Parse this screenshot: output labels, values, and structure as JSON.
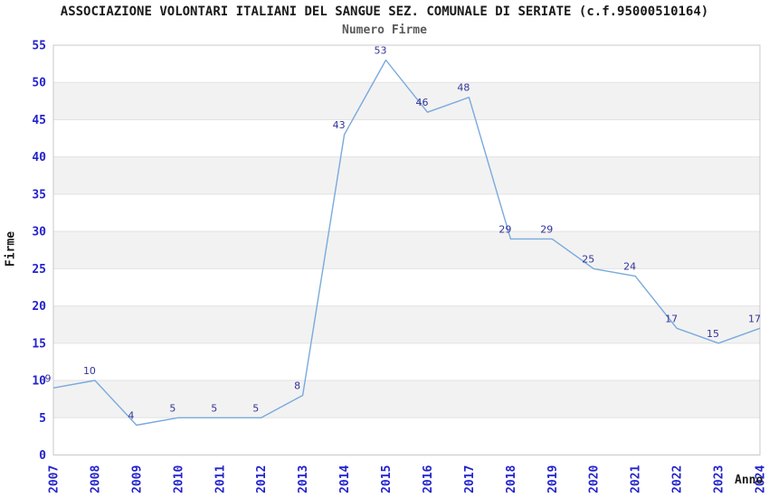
{
  "chart_data": {
    "type": "line",
    "title": "ASSOCIAZIONE VOLONTARI ITALIANI DEL SANGUE SEZ. COMUNALE DI SERIATE (c.f.95000510164)",
    "subtitle": "Numero Firme",
    "xlabel": "Anno",
    "ylabel": "Firme",
    "categories": [
      "2007",
      "2008",
      "2009",
      "2010",
      "2011",
      "2012",
      "2013",
      "2014",
      "2015",
      "2016",
      "2017",
      "2018",
      "2019",
      "2020",
      "2021",
      "2022",
      "2023",
      "2024"
    ],
    "series": [
      {
        "name": "Numero Firme",
        "values": [
          9,
          10,
          4,
          5,
          5,
          5,
          8,
          43,
          53,
          46,
          48,
          29,
          29,
          25,
          24,
          17,
          15,
          17
        ]
      }
    ],
    "ylim": [
      0,
      55
    ],
    "ytick_step": 5,
    "yticks": [
      0,
      5,
      10,
      15,
      20,
      25,
      30,
      35,
      40,
      45,
      50,
      55
    ],
    "data_labels_shown": true,
    "legend": "none",
    "grid": "horizontal-bands",
    "band_ranges": [
      [
        5,
        10
      ],
      [
        15,
        20
      ],
      [
        25,
        30
      ],
      [
        35,
        40
      ],
      [
        45,
        50
      ]
    ],
    "colors": {
      "line": "#79aadd",
      "data_label": "#333399",
      "tick_label": "#2323cc",
      "band_fill": "#f2f2f2",
      "grid_line": "#e2e2e2",
      "plot_border": "#c8c8c8",
      "title": "#1a1a1a",
      "subtitle": "#5a5a5a",
      "background": "#ffffff"
    }
  }
}
